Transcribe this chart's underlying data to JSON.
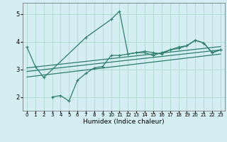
{
  "bg_color": "#d4eef4",
  "line_color": "#2e7d6e",
  "grid_color": "#b0d8d0",
  "xlabel": "Humidex (Indice chaleur)",
  "xlim": [
    -0.5,
    23.5
  ],
  "ylim": [
    1.5,
    5.4
  ],
  "yticks": [
    2,
    3,
    4,
    5
  ],
  "xticks": [
    0,
    1,
    2,
    3,
    4,
    5,
    6,
    7,
    8,
    9,
    10,
    11,
    12,
    13,
    14,
    15,
    16,
    17,
    18,
    19,
    20,
    21,
    22,
    23
  ],
  "line1_x": [
    0,
    1,
    2,
    7,
    10,
    11,
    12,
    13,
    14,
    15,
    16,
    17,
    18,
    19,
    20,
    21,
    22,
    23
  ],
  "line1_y": [
    3.8,
    3.1,
    2.7,
    4.15,
    4.8,
    5.1,
    3.55,
    3.6,
    3.65,
    3.6,
    3.55,
    3.7,
    3.8,
    3.85,
    4.05,
    3.95,
    3.6,
    3.7
  ],
  "line2_x": [
    3,
    4,
    5,
    6,
    7,
    8,
    9,
    10,
    11,
    12,
    13,
    14,
    15,
    16,
    17,
    18,
    19,
    20,
    21,
    22,
    23
  ],
  "line2_y": [
    2.0,
    2.05,
    1.85,
    2.6,
    2.85,
    3.05,
    3.1,
    3.5,
    3.5,
    3.55,
    3.6,
    3.6,
    3.5,
    3.6,
    3.7,
    3.75,
    3.85,
    4.05,
    3.95,
    3.6,
    3.7
  ],
  "regline1_x": [
    0,
    23
  ],
  "regline1_y": [
    2.72,
    3.55
  ],
  "regline2_x": [
    0,
    23
  ],
  "regline2_y": [
    2.92,
    3.7
  ],
  "regline3_x": [
    0,
    23
  ],
  "regline3_y": [
    3.05,
    3.82
  ]
}
